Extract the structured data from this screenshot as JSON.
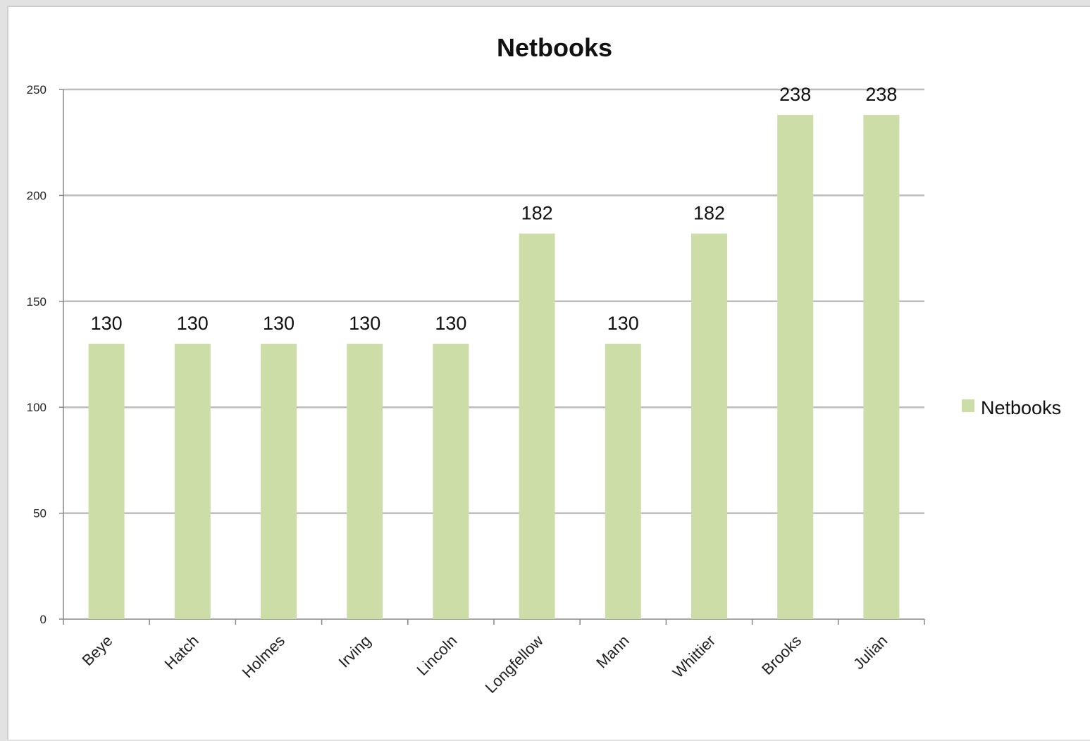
{
  "chart_data": {
    "type": "bar",
    "title": "Netbooks",
    "xlabel": "",
    "ylabel": "",
    "categories": [
      "Beye",
      "Hatch",
      "Holmes",
      "Irving",
      "Lincoln",
      "Longfellow",
      "Mann",
      "Whittier",
      "Brooks",
      "Julian"
    ],
    "series": [
      {
        "name": "Netbooks",
        "values": [
          130,
          130,
          130,
          130,
          130,
          182,
          130,
          182,
          238,
          238
        ],
        "color": "#cddda8"
      }
    ],
    "data_labels": [
      "130",
      "130",
      "130",
      "130",
      "130",
      "182",
      "130",
      "182",
      "238",
      "238"
    ],
    "ylim": [
      0,
      250
    ],
    "yticks": [
      0,
      50,
      100,
      150,
      200,
      250
    ],
    "grid": true,
    "legend": {
      "position": "right",
      "entries": [
        "Netbooks"
      ]
    },
    "colors": {
      "bar": "#cddda8",
      "grid": "#bcbcbc",
      "axis": "#888888"
    }
  }
}
